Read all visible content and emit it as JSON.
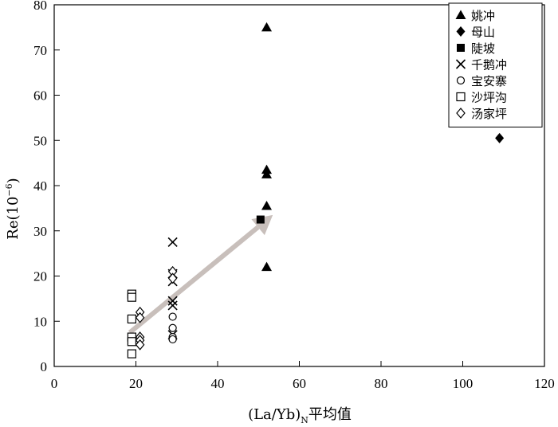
{
  "chart_data": {
    "type": "scatter",
    "xlabel_main": "(La/Yb)",
    "xlabel_sub": "N",
    "xlabel_tail": "平均值",
    "ylabel_main": "Re(10",
    "ylabel_sup": "−6",
    "ylabel_tail": ")",
    "xlim": [
      0,
      120
    ],
    "ylim": [
      0,
      80
    ],
    "x_ticks": [
      "0",
      "20",
      "40",
      "60",
      "80",
      "100",
      "120"
    ],
    "y_ticks": [
      "0",
      "10",
      "20",
      "30",
      "40",
      "50",
      "60",
      "70",
      "80"
    ],
    "grid": false,
    "legend_position": "top-right",
    "series": [
      {
        "name": "姚冲",
        "marker": "triangle-filled",
        "points": [
          [
            52,
            75
          ],
          [
            52,
            43.5
          ],
          [
            52,
            42.5
          ],
          [
            52,
            35.5
          ],
          [
            52,
            22
          ]
        ]
      },
      {
        "name": "母山",
        "marker": "diamond-filled",
        "points": [
          [
            109,
            50.5
          ]
        ]
      },
      {
        "name": "陡坡",
        "marker": "square-filled",
        "points": [
          [
            50.5,
            32.5
          ]
        ]
      },
      {
        "name": "千鹅冲",
        "marker": "asterisk",
        "points": [
          [
            29,
            27.5
          ],
          [
            29,
            20.5
          ],
          [
            29,
            18.8
          ],
          [
            29,
            14.5
          ],
          [
            29,
            13.5
          ],
          [
            29,
            7
          ]
        ]
      },
      {
        "name": "宝安寨",
        "marker": "circle-open",
        "points": [
          [
            29,
            11
          ],
          [
            29,
            8.5
          ],
          [
            29,
            6.5
          ],
          [
            29,
            6
          ]
        ]
      },
      {
        "name": "沙坪沟",
        "marker": "square-open",
        "points": [
          [
            19,
            16
          ],
          [
            19,
            15.3
          ],
          [
            19,
            10.5
          ],
          [
            19,
            6.5
          ],
          [
            19,
            5.5
          ],
          [
            19,
            2.8
          ]
        ]
      },
      {
        "name": "汤家坪",
        "marker": "diamond-open",
        "points": [
          [
            21,
            12
          ],
          [
            21,
            10.8
          ],
          [
            21,
            6.5
          ],
          [
            21,
            5.8
          ],
          [
            21,
            4.8
          ],
          [
            29,
            21
          ],
          [
            29,
            19.5
          ]
        ]
      }
    ],
    "trend_arrow": {
      "from": [
        18.5,
        7.5
      ],
      "to": [
        53.5,
        33.5
      ],
      "color": "#c8bfbb"
    }
  }
}
